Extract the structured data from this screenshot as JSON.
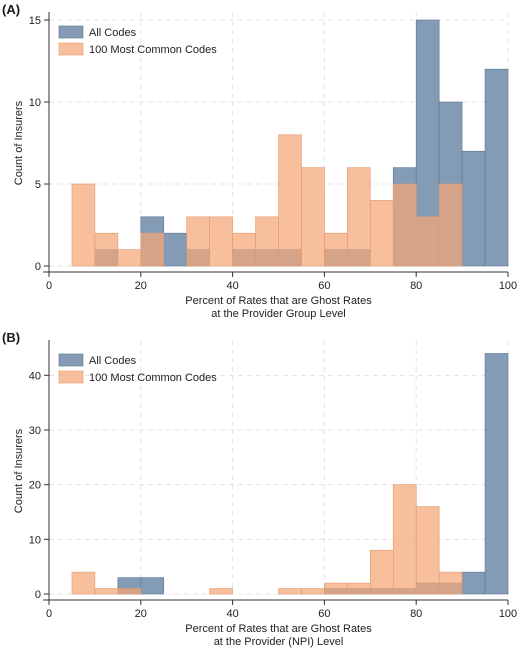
{
  "chart_data": [
    {
      "type": "histogram",
      "panel_label": "(A)",
      "xlabel_line1": "Percent of Rates that are Ghost Rates",
      "xlabel_line2": "at the Provider Group Level",
      "ylabel": "Count of Insurers",
      "xlim": [
        0,
        100
      ],
      "ylim": [
        0,
        15
      ],
      "xticks": [
        0,
        20,
        40,
        60,
        80,
        100
      ],
      "yticks": [
        0,
        5,
        10,
        15
      ],
      "grid": true,
      "legend": "top-left",
      "bin_edges": [
        5,
        10,
        15,
        20,
        25,
        30,
        35,
        40,
        45,
        50,
        55,
        60,
        65,
        70,
        75,
        80,
        85,
        90,
        95,
        100
      ],
      "series": [
        {
          "name": "All Codes",
          "color": "#7a92b0",
          "values": [
            0,
            1,
            0,
            3,
            2,
            1,
            0,
            1,
            1,
            1,
            0,
            1,
            1,
            0,
            6,
            15,
            10,
            7,
            12
          ]
        },
        {
          "name": "100 Most Common Codes",
          "color": "#f4a676",
          "values": [
            5,
            2,
            1,
            2,
            0,
            3,
            3,
            2,
            3,
            8,
            6,
            2,
            6,
            4,
            5,
            3,
            5,
            0,
            0
          ]
        }
      ]
    },
    {
      "type": "histogram",
      "panel_label": "(B)",
      "xlabel_line1": "Percent of Rates that are Ghost Rates",
      "xlabel_line2": "at the Provider (NPI) Level",
      "ylabel": "Count of Insurers",
      "xlim": [
        0,
        100
      ],
      "ylim": [
        0,
        45
      ],
      "xticks": [
        0,
        20,
        40,
        60,
        80,
        100
      ],
      "yticks": [
        0,
        10,
        20,
        30,
        40
      ],
      "grid": true,
      "legend": "top-left",
      "bin_edges": [
        5,
        10,
        15,
        20,
        25,
        30,
        35,
        40,
        45,
        50,
        55,
        60,
        65,
        70,
        75,
        80,
        85,
        90,
        95,
        100
      ],
      "series": [
        {
          "name": "All Codes",
          "color": "#7a92b0",
          "values": [
            0,
            0,
            3,
            3,
            0,
            0,
            0,
            0,
            0,
            0,
            0,
            1,
            1,
            1,
            1,
            2,
            2,
            4,
            44
          ]
        },
        {
          "name": "100 Most Common Codes",
          "color": "#f4a676",
          "values": [
            4,
            1,
            1,
            0,
            0,
            0,
            1,
            0,
            0,
            1,
            1,
            2,
            2,
            8,
            20,
            16,
            4,
            0,
            0
          ]
        }
      ]
    }
  ]
}
